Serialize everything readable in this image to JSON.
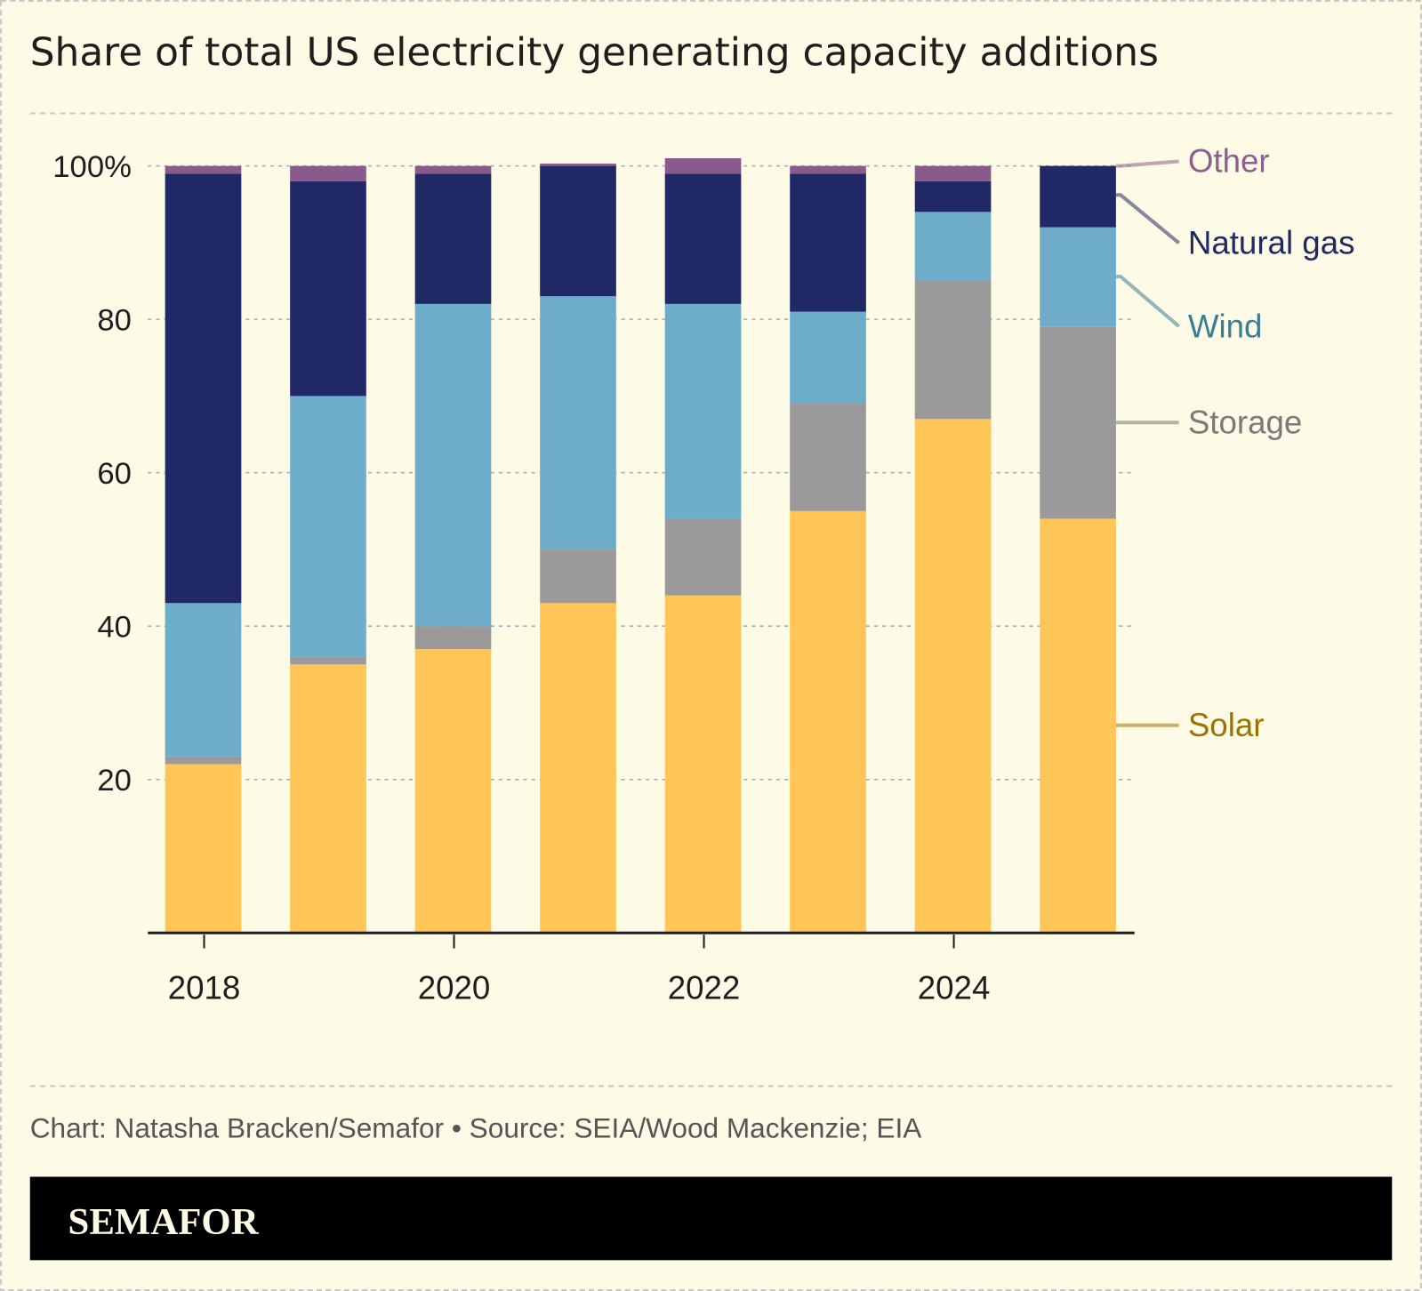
{
  "title": "Share of total US electricity generating capacity additions",
  "credit": "Chart: Natasha Bracken/Semafor • Source: SEIA/Wood Mackenzie; EIA",
  "logo": "SEMAFOR",
  "colors": {
    "background": "#FDFAE6",
    "Solar": "#FFC657",
    "Storage": "#9A9A9A",
    "Wind": "#6DADCA",
    "Natural gas": "#202966",
    "Other": "#8B5A8C"
  },
  "label_colors": {
    "Solar": "#9B7400",
    "Storage": "#7A7A7A",
    "Wind": "#3A7E96",
    "Natural gas": "#202966",
    "Other": "#8E5E8E"
  },
  "chart_data": {
    "type": "bar",
    "stacked": true,
    "title": "Share of total US electricity generating capacity additions",
    "categories": [
      2018,
      2019,
      2020,
      2021,
      2022,
      2023,
      2024,
      2025
    ],
    "x_tick_labels": [
      "2018",
      "2020",
      "2022",
      "2024"
    ],
    "y_tick_labels": [
      "20",
      "40",
      "60",
      "80",
      "100%"
    ],
    "ylim": [
      0,
      100
    ],
    "grid": true,
    "legend": "right, direct labels",
    "series": [
      {
        "name": "Solar",
        "values": [
          22,
          35,
          37,
          43,
          44,
          55,
          67,
          54
        ]
      },
      {
        "name": "Storage",
        "values": [
          1,
          1,
          3,
          7,
          10,
          14,
          18,
          25
        ]
      },
      {
        "name": "Wind",
        "values": [
          20,
          34,
          42,
          33,
          28,
          12,
          9,
          13
        ]
      },
      {
        "name": "Natural gas",
        "values": [
          56,
          28,
          17,
          17,
          17,
          18,
          4,
          8
        ]
      },
      {
        "name": "Other",
        "values": [
          1,
          2,
          1,
          0.3,
          2,
          1,
          2,
          0
        ]
      }
    ]
  }
}
